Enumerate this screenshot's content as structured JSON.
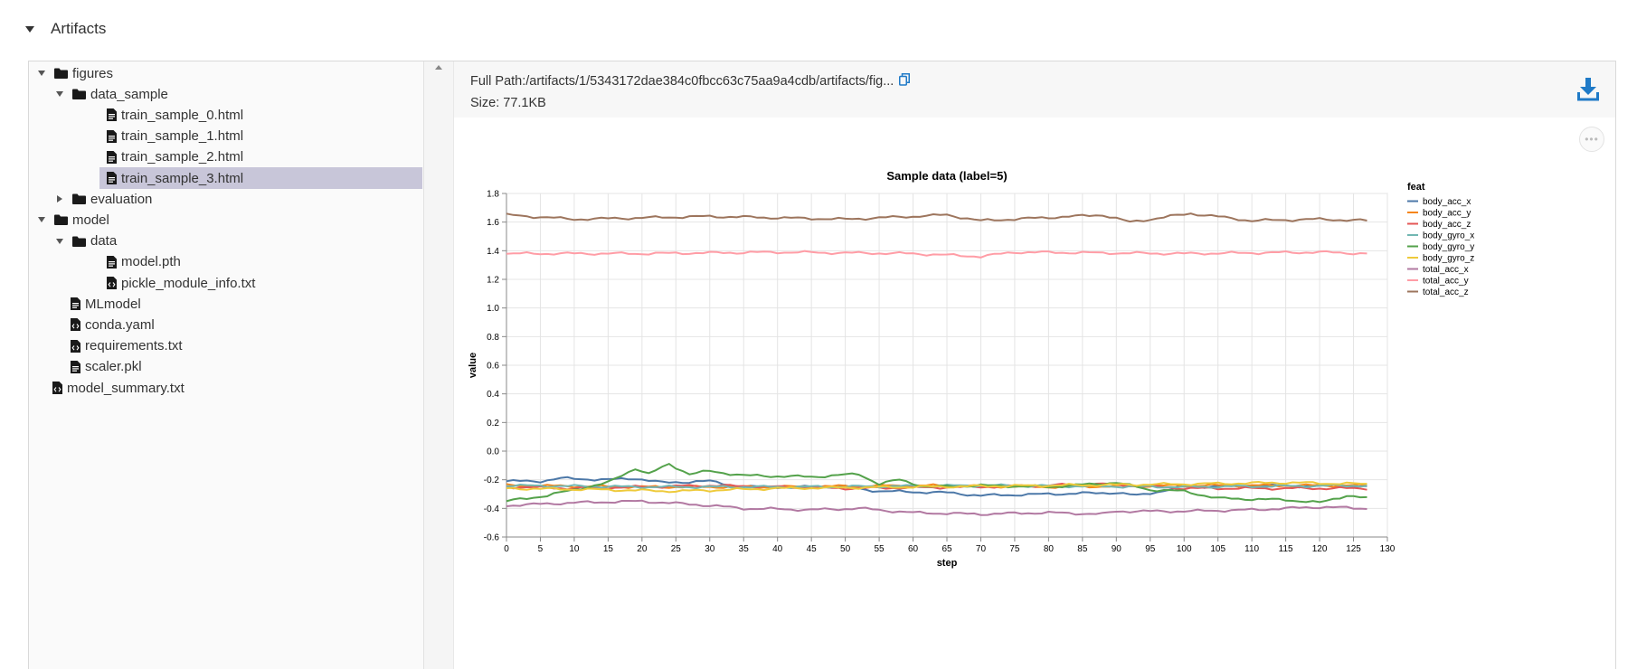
{
  "section": {
    "title": "Artifacts"
  },
  "tree": [
    {
      "label": "figures",
      "type": "folder",
      "expanded": true,
      "depth": 0
    },
    {
      "label": "data_sample",
      "type": "folder",
      "expanded": true,
      "depth": 1
    },
    {
      "label": "train_sample_0.html",
      "type": "file",
      "depth": 2
    },
    {
      "label": "train_sample_1.html",
      "type": "file",
      "depth": 2
    },
    {
      "label": "train_sample_2.html",
      "type": "file",
      "depth": 2
    },
    {
      "label": "train_sample_3.html",
      "type": "file",
      "depth": 2,
      "selected": true
    },
    {
      "label": "evaluation",
      "type": "folder",
      "expanded": false,
      "depth": 1
    },
    {
      "label": "model",
      "type": "folder",
      "expanded": true,
      "depth": 0
    },
    {
      "label": "data",
      "type": "folder",
      "expanded": true,
      "depth": 1
    },
    {
      "label": "model.pth",
      "type": "file",
      "depth": 2
    },
    {
      "label": "pickle_module_info.txt",
      "type": "code-file",
      "depth": 2
    },
    {
      "label": "MLmodel",
      "type": "file",
      "depth": 1
    },
    {
      "label": "conda.yaml",
      "type": "code-file",
      "depth": 1
    },
    {
      "label": "requirements.txt",
      "type": "code-file",
      "depth": 1
    },
    {
      "label": "scaler.pkl",
      "type": "file",
      "depth": 1
    },
    {
      "label": "model_summary.txt",
      "type": "code-file",
      "depth": 0
    }
  ],
  "viewer": {
    "full_path": "Full Path:/artifacts/1/5343172dae384c0fbcc63c75aa9a4cdb/artifacts/fig...",
    "size": "Size: 77.1KB",
    "icons": {
      "copy": "copy-icon",
      "download": "download-icon",
      "more": "more-options-icon"
    },
    "accent_color": "#1f7ac7"
  },
  "chart_data": {
    "type": "line",
    "title": "Sample data (label=5)",
    "xlabel": "step",
    "ylabel": "value",
    "xlim": [
      0,
      130
    ],
    "ylim": [
      -0.6,
      1.8
    ],
    "xticks": [
      0,
      5,
      10,
      15,
      20,
      25,
      30,
      35,
      40,
      45,
      50,
      55,
      60,
      65,
      70,
      75,
      80,
      85,
      90,
      95,
      100,
      105,
      110,
      115,
      120,
      125,
      130
    ],
    "yticks": [
      -0.6,
      -0.4,
      -0.2,
      0.0,
      0.2,
      0.4,
      0.6,
      0.8,
      1.0,
      1.2,
      1.4,
      1.6,
      1.8
    ],
    "grid": true,
    "legend_title": "feat",
    "legend_position": "right",
    "x": "steps 0..127",
    "series": [
      {
        "name": "body_acc_x",
        "color": "#4c78a8",
        "knots": [
          [
            0,
            -0.21
          ],
          [
            5,
            -0.21
          ],
          [
            8,
            -0.19
          ],
          [
            15,
            -0.2
          ],
          [
            19,
            -0.19
          ],
          [
            23,
            -0.22
          ],
          [
            30,
            -0.21
          ],
          [
            35,
            -0.25
          ],
          [
            50,
            -0.25
          ],
          [
            55,
            -0.28
          ],
          [
            65,
            -0.29
          ],
          [
            70,
            -0.31
          ],
          [
            80,
            -0.3
          ],
          [
            90,
            -0.29
          ],
          [
            93,
            -0.31
          ],
          [
            100,
            -0.25
          ],
          [
            110,
            -0.24
          ],
          [
            127,
            -0.25
          ]
        ]
      },
      {
        "name": "body_acc_y",
        "color": "#f58518",
        "knots": [
          [
            0,
            -0.24
          ],
          [
            20,
            -0.25
          ],
          [
            40,
            -0.25
          ],
          [
            60,
            -0.24
          ],
          [
            80,
            -0.25
          ],
          [
            100,
            -0.24
          ],
          [
            127,
            -0.24
          ]
        ]
      },
      {
        "name": "body_acc_z",
        "color": "#e45756",
        "knots": [
          [
            0,
            -0.25
          ],
          [
            10,
            -0.26
          ],
          [
            30,
            -0.24
          ],
          [
            50,
            -0.26
          ],
          [
            70,
            -0.25
          ],
          [
            88,
            -0.23
          ],
          [
            100,
            -0.26
          ],
          [
            127,
            -0.26
          ]
        ]
      },
      {
        "name": "body_gyro_x",
        "color": "#72b7b2",
        "knots": [
          [
            0,
            -0.24
          ],
          [
            20,
            -0.25
          ],
          [
            45,
            -0.25
          ],
          [
            70,
            -0.24
          ],
          [
            100,
            -0.25
          ],
          [
            127,
            -0.24
          ]
        ]
      },
      {
        "name": "body_gyro_y",
        "color": "#54a24b",
        "knots": [
          [
            0,
            -0.35
          ],
          [
            6,
            -0.31
          ],
          [
            10,
            -0.27
          ],
          [
            15,
            -0.22
          ],
          [
            19,
            -0.12
          ],
          [
            21,
            -0.16
          ],
          [
            24,
            -0.09
          ],
          [
            27,
            -0.16
          ],
          [
            30,
            -0.14
          ],
          [
            35,
            -0.17
          ],
          [
            45,
            -0.18
          ],
          [
            52,
            -0.16
          ],
          [
            55,
            -0.23
          ],
          [
            58,
            -0.2
          ],
          [
            62,
            -0.25
          ],
          [
            70,
            -0.24
          ],
          [
            80,
            -0.25
          ],
          [
            90,
            -0.22
          ],
          [
            95,
            -0.27
          ],
          [
            100,
            -0.28
          ],
          [
            105,
            -0.33
          ],
          [
            115,
            -0.34
          ],
          [
            120,
            -0.36
          ],
          [
            124,
            -0.31
          ],
          [
            127,
            -0.33
          ]
        ]
      },
      {
        "name": "body_gyro_z",
        "color": "#eeca3b",
        "knots": [
          [
            0,
            -0.26
          ],
          [
            15,
            -0.27
          ],
          [
            25,
            -0.28
          ],
          [
            40,
            -0.26
          ],
          [
            60,
            -0.25
          ],
          [
            80,
            -0.24
          ],
          [
            100,
            -0.23
          ],
          [
            115,
            -0.22
          ],
          [
            127,
            -0.23
          ]
        ]
      },
      {
        "name": "total_acc_x",
        "color": "#b279a2",
        "knots": [
          [
            0,
            -0.38
          ],
          [
            10,
            -0.36
          ],
          [
            20,
            -0.35
          ],
          [
            30,
            -0.38
          ],
          [
            35,
            -0.4
          ],
          [
            45,
            -0.41
          ],
          [
            52,
            -0.4
          ],
          [
            60,
            -0.43
          ],
          [
            70,
            -0.44
          ],
          [
            80,
            -0.43
          ],
          [
            88,
            -0.44
          ],
          [
            90,
            -0.42
          ],
          [
            100,
            -0.42
          ],
          [
            110,
            -0.41
          ],
          [
            120,
            -0.39
          ],
          [
            127,
            -0.4
          ]
        ]
      },
      {
        "name": "total_acc_y",
        "color": "#ff9da6",
        "knots": [
          [
            0,
            1.38
          ],
          [
            20,
            1.38
          ],
          [
            40,
            1.39
          ],
          [
            60,
            1.38
          ],
          [
            65,
            1.37
          ],
          [
            70,
            1.36
          ],
          [
            75,
            1.39
          ],
          [
            100,
            1.38
          ],
          [
            120,
            1.39
          ],
          [
            127,
            1.38
          ]
        ]
      },
      {
        "name": "total_acc_z",
        "color": "#9d755d",
        "knots": [
          [
            0,
            1.65
          ],
          [
            10,
            1.62
          ],
          [
            30,
            1.64
          ],
          [
            50,
            1.62
          ],
          [
            60,
            1.64
          ],
          [
            65,
            1.65
          ],
          [
            70,
            1.61
          ],
          [
            88,
            1.65
          ],
          [
            92,
            1.6
          ],
          [
            101,
            1.66
          ],
          [
            110,
            1.61
          ],
          [
            120,
            1.62
          ],
          [
            127,
            1.61
          ]
        ]
      }
    ]
  }
}
